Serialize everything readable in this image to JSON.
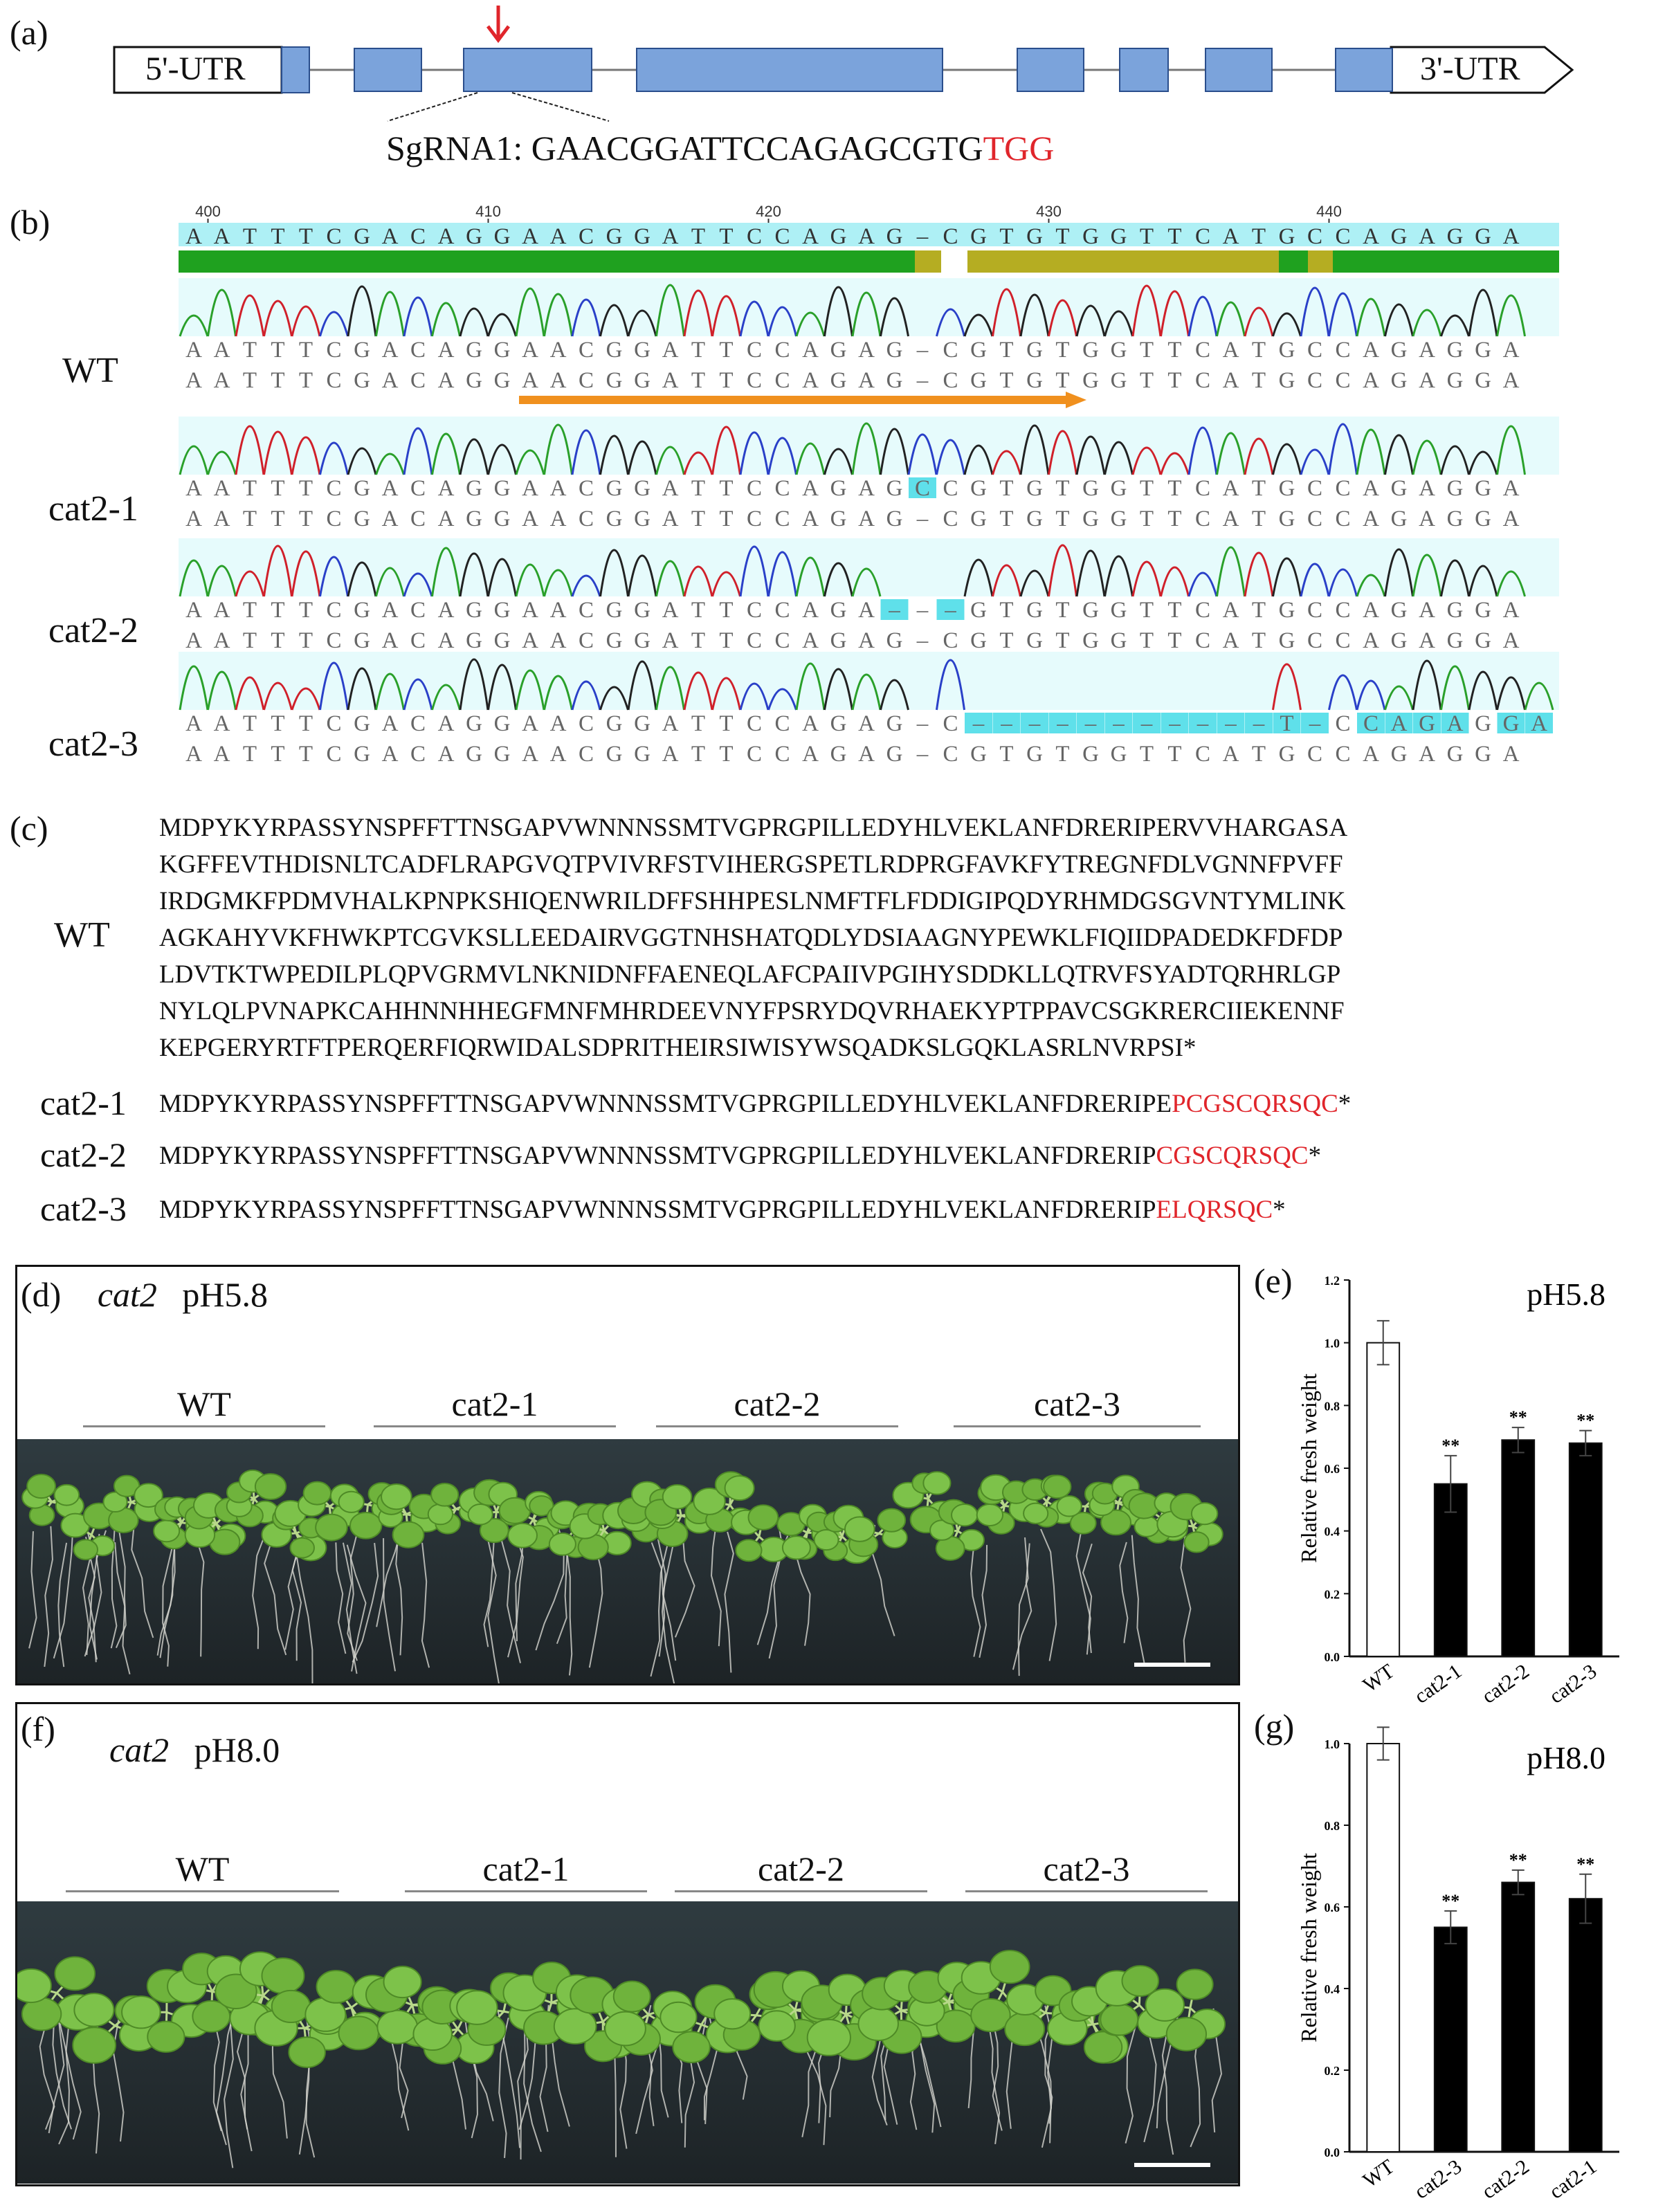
{
  "panel_a": {
    "label": "(a)",
    "utr5": "5'-UTR",
    "utr3": "3'-UTR",
    "sgrna_prefix": "SgRNA1: GAACGGATTCCAGAGCGTG",
    "sgrna_pam": "TGG",
    "colors": {
      "exon": "#7ba3db",
      "arrow": "#e0252b",
      "pam": "#e0252b"
    }
  },
  "panel_b": {
    "label": "(b)",
    "ruler": [
      "400",
      "410",
      "420",
      "430",
      "440"
    ],
    "reference": "AATTTCGACAGGAACGGATTCCAGAG-CGTGTGGTTCATGCCAGAGGA",
    "samples": [
      {
        "name": "WT",
        "read": "AATTTCGACAGGAACGGATTCCAGAG-CGTGTGGTTCATGCCAGAGGA",
        "ref": "AATTTCGACAGGAACGGATTCCAGAG-CGTGTGGTTCATGCCAGAGGA"
      },
      {
        "name": "cat2-1",
        "read": "AATTTCGACAGGAACGGATTCCAGAGCCGTGTGGTTCATGCCAGAGGA",
        "ref": "AATTTCGACAGGAACGGATTCCAGAG-CGTGTGGTTCATGCCAGAGGA"
      },
      {
        "name": "cat2-2",
        "read": "AATTTCGACAGGAACGGATTCCAGA---GTGTGGTTCATGCCAGAGGA",
        "ref": "AATTTCGACAGGAACGGATTCCAGAG-CGTGTGGTTCATGCCAGAGGA"
      },
      {
        "name": "cat2-3",
        "read": "AATTTCGACAGGAACGGATTCCAGAG-C-----------T-CCAGAGGA",
        "ref": "AATTTCGACAGGAACGGATTCCAGAG-CGTGTGGTTCATGCCAGAGGA"
      }
    ],
    "colors": {
      "highlight": "#aef0f5",
      "bar_green": "#1fa11f",
      "bar_olive": "#b5ad22",
      "guide_arrow": "#f0901e"
    }
  },
  "panel_c": {
    "label": "(c)",
    "wt_name": "WT",
    "wt_lines": [
      "MDPYKYRPASSYNSPFFTTNSGAPVWNNNSSMTVGPRGPILLEDYHLVEKLANFDRERIPERVVHARGASA",
      "KGFFEVTHDISNLTCADFLRAPGVQTPVIVRFSTVIHERGSPETLRDPRGFAVKFYTREGNFDLVGNNFPVFF",
      "IRDGMKFPDMVHALKPNPKSHIQENWRILDFFSHHPESLNMFTFLFDDIGIPQDYRHMDGSGVNTYMLINK",
      "AGKAHYVKFHWKPTCGVKSLLEEDAIRVGGTNHSHATQDLYDSIAAGNYPEWKLFIQIIDPADEDKFDFDP",
      "LDVTKTWPEDILPLQPVGRMVLNKNIDNFFAENEQLAFCPAIIVPGIHYSDDKLLQTRVFSYADTQRHRLGP",
      "NYLQLPVNAPKCAHHNNHHEGFMNFMHRDEEVNYFPSRYDQVRHAEKYPTPPAVCSGKRERCIIEKENNF",
      "KEPGERYRTFTPERQERFIQRWIDALSDPRITHEIRSIWISYWSQADKSLGQKLASRLNVRPSI*"
    ],
    "mutants": [
      {
        "name": "cat2-1",
        "seq": "MDPYKYRPASSYNSPFFTTNSGAPVWNNNSSMTVGPRGPILLEDYHLVEKLANFDRERIPE",
        "mut": "PCGSCQRSQC",
        "end": "*"
      },
      {
        "name": "cat2-2",
        "seq": "MDPYKYRPASSYNSPFFTTNSGAPVWNNNSSMTVGPRGPILLEDYHLVEKLANFDRERIP",
        "mut": "CGSCQRSQC",
        "end": "*"
      },
      {
        "name": "cat2-3",
        "seq": "MDPYKYRPASSYNSPFFTTNSGAPVWNNNSSMTVGPRGPILLEDYHLVEKLANFDRERIP",
        "mut": "ELQRSQC",
        "end": "*"
      }
    ]
  },
  "panel_d": {
    "label": "(d)",
    "gene": "cat2",
    "condition": "pH5.8",
    "groups": [
      "WT",
      "cat2-1",
      "cat2-2",
      "cat2-3"
    ]
  },
  "panel_f": {
    "label": "(f)",
    "gene": "cat2",
    "condition": "pH8.0",
    "groups": [
      "WT",
      "cat2-1",
      "cat2-2",
      "cat2-3"
    ]
  },
  "chart_data": [
    {
      "panel": "(e)",
      "type": "bar",
      "title": "pH5.8",
      "ylabel": "Relative fresh weight",
      "categories": [
        "WT",
        "cat2-1",
        "cat2-2",
        "cat2-3"
      ],
      "values": [
        1.0,
        0.55,
        0.69,
        0.68
      ],
      "errors": [
        0.07,
        0.09,
        0.04,
        0.04
      ],
      "significance": [
        "",
        "**",
        "**",
        "**"
      ],
      "bar_colors": [
        "#ffffff",
        "#000000",
        "#000000",
        "#000000"
      ],
      "ylim": [
        0,
        1.2
      ],
      "yticks": [
        "0.0",
        "0.2",
        "0.4",
        "0.6",
        "0.8",
        "1.0",
        "1.2"
      ]
    },
    {
      "panel": "(g)",
      "type": "bar",
      "title": "pH8.0",
      "ylabel": "Relative fresh weight",
      "categories": [
        "WT",
        "cat2-3",
        "cat2-2",
        "cat2-1"
      ],
      "values": [
        1.0,
        0.55,
        0.66,
        0.62
      ],
      "errors": [
        0.04,
        0.04,
        0.03,
        0.06
      ],
      "significance": [
        "",
        "**",
        "**",
        "**"
      ],
      "bar_colors": [
        "#ffffff",
        "#000000",
        "#000000",
        "#000000"
      ],
      "ylim": [
        0,
        1.0
      ],
      "yticks": [
        "0.0",
        "0.2",
        "0.4",
        "0.6",
        "0.8",
        "1.0"
      ]
    }
  ]
}
